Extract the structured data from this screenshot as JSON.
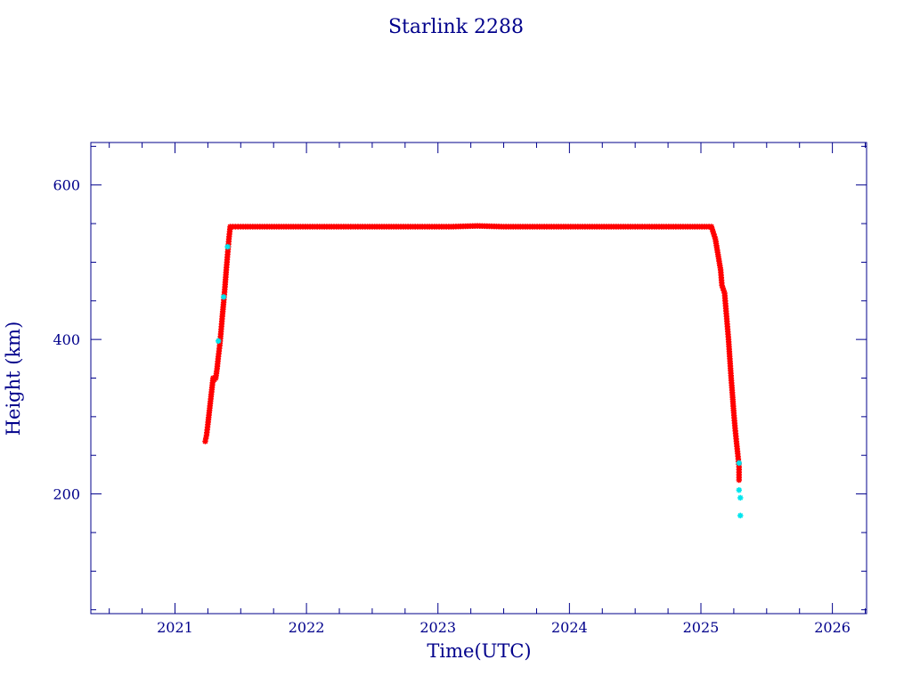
{
  "colors": {
    "axis": "#00008b",
    "marker_primary": "#ff0000",
    "marker_secondary": "#00e5ee",
    "background": "#ffffff"
  },
  "chart_data": {
    "type": "scatter",
    "title": "Starlink 2288",
    "xlabel": "Time(UTC)",
    "ylabel": "Height (km)",
    "xlim": [
      2020.36,
      2026.26
    ],
    "ylim": [
      45,
      655
    ],
    "xticks": [
      2021,
      2022,
      2023,
      2024,
      2025,
      2026
    ],
    "xtick_labels": [
      "2021",
      "2022",
      "2023",
      "2024",
      "2025",
      "2026"
    ],
    "yticks": [
      200,
      400,
      600
    ],
    "ytick_labels": [
      "200",
      "400",
      "600"
    ],
    "grid": false,
    "series": [
      {
        "marker": "asterisk",
        "color": "#ff0000",
        "points": [
          [
            2021.23,
            268
          ],
          [
            2021.24,
            276
          ],
          [
            2021.25,
            290
          ],
          [
            2021.26,
            305
          ],
          [
            2021.27,
            320
          ],
          [
            2021.28,
            335
          ],
          [
            2021.29,
            350
          ],
          [
            2021.3,
            348
          ],
          [
            2021.31,
            350
          ],
          [
            2021.32,
            362
          ],
          [
            2021.33,
            378
          ],
          [
            2021.34,
            392
          ],
          [
            2021.35,
            410
          ],
          [
            2021.36,
            430
          ],
          [
            2021.37,
            448
          ],
          [
            2021.38,
            468
          ],
          [
            2021.39,
            490
          ],
          [
            2021.4,
            510
          ],
          [
            2021.41,
            530
          ],
          [
            2021.42,
            546
          ],
          [
            2021.5,
            546
          ],
          [
            2021.7,
            546
          ],
          [
            2021.9,
            546
          ],
          [
            2022.1,
            546
          ],
          [
            2022.3,
            546
          ],
          [
            2022.5,
            546
          ],
          [
            2022.7,
            546
          ],
          [
            2022.9,
            546
          ],
          [
            2023.1,
            546
          ],
          [
            2023.3,
            547
          ],
          [
            2023.5,
            546
          ],
          [
            2023.7,
            546
          ],
          [
            2023.9,
            546
          ],
          [
            2024.1,
            546
          ],
          [
            2024.3,
            546
          ],
          [
            2024.5,
            546
          ],
          [
            2024.7,
            546
          ],
          [
            2024.9,
            546
          ],
          [
            2025.08,
            546
          ],
          [
            2025.11,
            530
          ],
          [
            2025.13,
            510
          ],
          [
            2025.15,
            490
          ],
          [
            2025.16,
            470
          ],
          [
            2025.18,
            460
          ],
          [
            2025.19,
            440
          ],
          [
            2025.2,
            420
          ],
          [
            2025.21,
            400
          ],
          [
            2025.22,
            375
          ],
          [
            2025.23,
            350
          ],
          [
            2025.24,
            328
          ],
          [
            2025.25,
            305
          ],
          [
            2025.26,
            285
          ],
          [
            2025.27,
            268
          ],
          [
            2025.28,
            252
          ],
          [
            2025.29,
            235
          ],
          [
            2025.29,
            218
          ]
        ]
      },
      {
        "marker": "asterisk",
        "color": "#00e5ee",
        "points": [
          [
            2021.33,
            398
          ],
          [
            2021.37,
            455
          ],
          [
            2021.4,
            520
          ],
          [
            2025.29,
            240
          ],
          [
            2025.29,
            205
          ],
          [
            2025.3,
            195
          ],
          [
            2025.3,
            172
          ]
        ]
      }
    ]
  }
}
